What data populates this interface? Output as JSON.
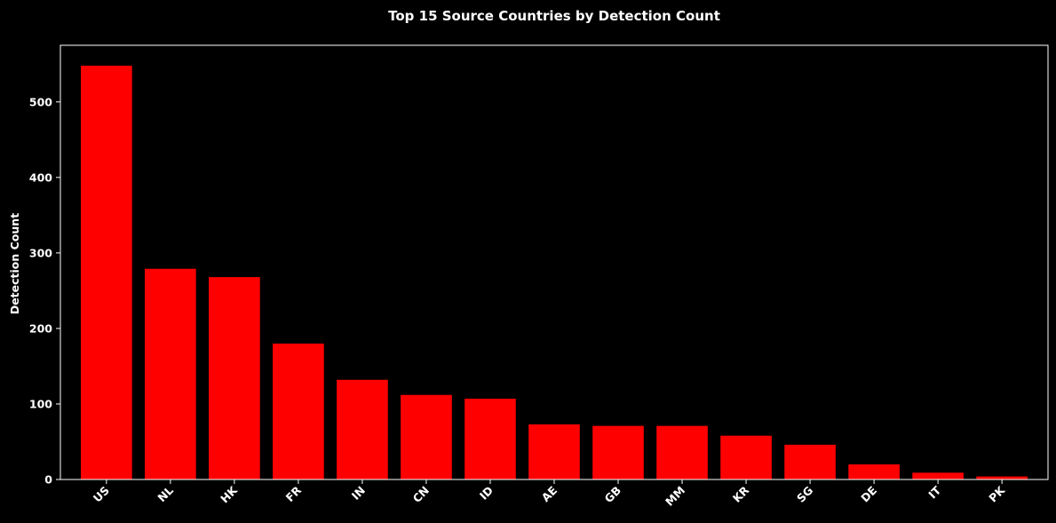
{
  "chart_data": {
    "type": "bar",
    "title": "Top 15 Source Countries by Detection Count",
    "xlabel": "",
    "ylabel": "Detection Count",
    "categories": [
      "US",
      "NL",
      "HK",
      "FR",
      "IN",
      "CN",
      "ID",
      "AE",
      "GB",
      "MM",
      "KR",
      "SG",
      "DE",
      "IT",
      "PK"
    ],
    "values": [
      548,
      279,
      268,
      180,
      132,
      112,
      107,
      73,
      71,
      71,
      58,
      46,
      20,
      9,
      4
    ],
    "ylim": [
      0,
      575
    ],
    "yticks": [
      0,
      100,
      200,
      300,
      400,
      500
    ],
    "grid": false,
    "bar_color": "#ff0000",
    "background_color": "#000000",
    "text_color": "#ffffff"
  }
}
